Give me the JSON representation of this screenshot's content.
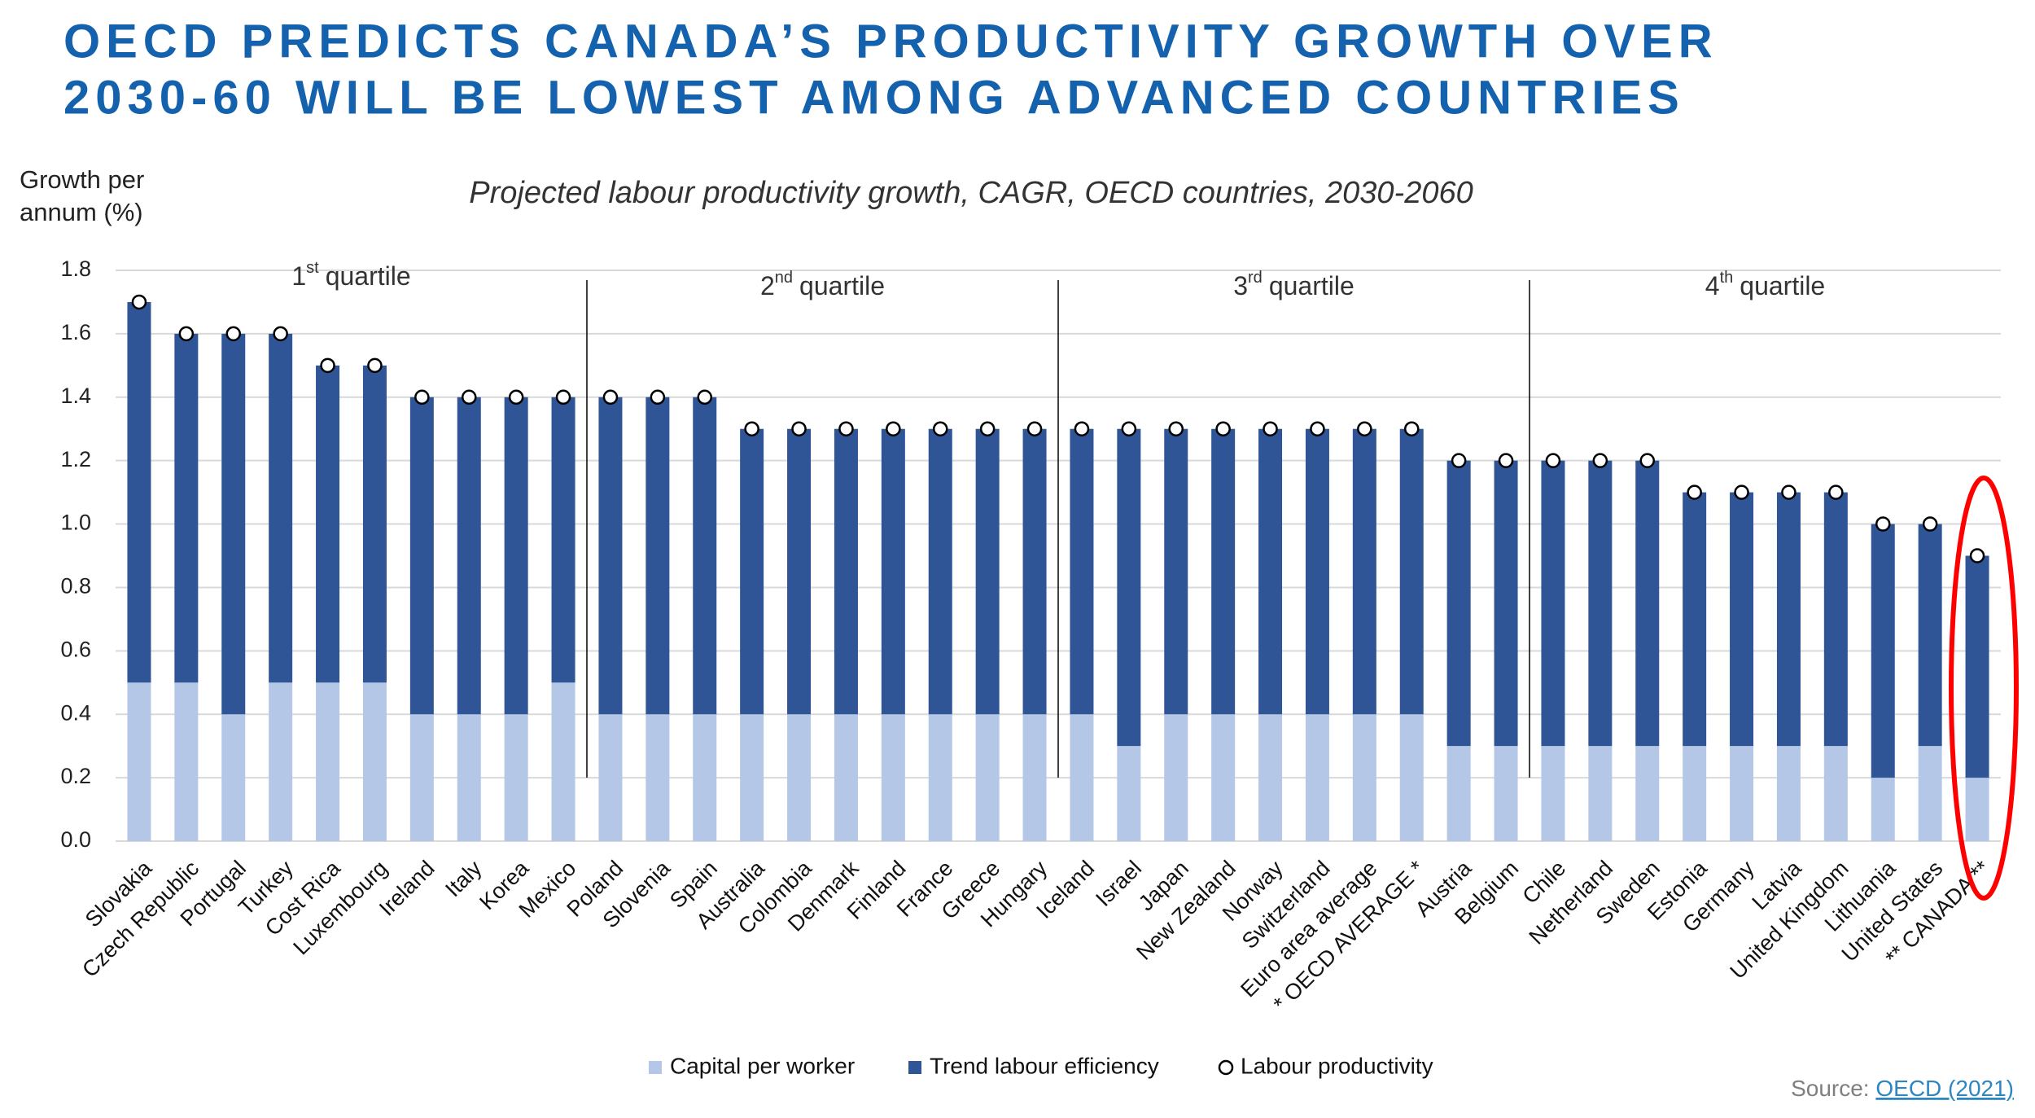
{
  "chart_data": {
    "type": "bar",
    "stacked": true,
    "title": [
      "OECD PREDICTS CANADA’S PRODUCTIVITY GROWTH OVER",
      "2030-60 WILL BE LOWEST AMONG ADVANCED COUNTRIES"
    ],
    "subtitle": "Projected labour productivity growth, CAGR, OECD countries, 2030-2060",
    "y_label": [
      "Growth per",
      "annum (%)"
    ],
    "annotations": [
      {
        "num": "1",
        "sup": "st",
        "rest": "quartile"
      },
      {
        "num": "2",
        "sup": "nd",
        "rest": "quartile"
      },
      {
        "num": "3",
        "sup": "rd",
        "rest": "quartile"
      },
      {
        "num": "4",
        "sup": "th",
        "rest": "quartile"
      }
    ],
    "categories": [
      "Slovakia",
      "Czech Republic",
      "Portugal",
      "Turkey",
      "Cost Rica",
      "Luxembourg",
      "Ireland",
      "Italy",
      "Korea",
      "Mexico",
      "Poland",
      "Slovenia",
      "Spain",
      "Australia",
      "Colombia",
      "Denmark",
      "Finland",
      "France",
      "Greece",
      "Hungary",
      "Iceland",
      "Israel",
      "Japan",
      "New Zealand",
      "Norway",
      "Switzerland",
      "Euro area average",
      "* OECD AVERAGE *",
      "Austria",
      "Belgium",
      "Chile",
      "Netherland",
      "Sweden",
      "Estonia",
      "Germany",
      "Latvia",
      "United Kingdom",
      "Lithuania",
      "United States",
      "** CANADA **"
    ],
    "series": [
      {
        "name": "Capital per worker",
        "type": "bar",
        "color": "#b4c7e7",
        "values": [
          0.5,
          0.5,
          0.4,
          0.5,
          0.5,
          0.5,
          0.4,
          0.4,
          0.4,
          0.5,
          0.4,
          0.4,
          0.4,
          0.4,
          0.4,
          0.4,
          0.4,
          0.4,
          0.4,
          0.4,
          0.4,
          0.3,
          0.4,
          0.4,
          0.4,
          0.4,
          0.4,
          0.4,
          0.3,
          0.3,
          0.3,
          0.3,
          0.3,
          0.3,
          0.3,
          0.3,
          0.3,
          0.2,
          0.3,
          0.2
        ]
      },
      {
        "name": "Trend labour efficiency",
        "type": "bar",
        "color": "#2f5597",
        "values": [
          1.2,
          1.1,
          1.2,
          1.1,
          1.0,
          1.0,
          1.0,
          1.0,
          1.0,
          0.9,
          1.0,
          1.0,
          1.0,
          0.9,
          0.9,
          0.9,
          0.9,
          0.9,
          0.9,
          0.9,
          0.9,
          1.0,
          0.9,
          0.9,
          0.9,
          0.9,
          0.9,
          0.9,
          0.9,
          0.9,
          0.9,
          0.9,
          0.9,
          0.8,
          0.8,
          0.8,
          0.8,
          0.8,
          0.7,
          0.7
        ]
      },
      {
        "name": "Labour productivity",
        "type": "scatter",
        "color": "#ffffff",
        "values": [
          1.7,
          1.6,
          1.6,
          1.6,
          1.5,
          1.5,
          1.4,
          1.4,
          1.4,
          1.4,
          1.4,
          1.4,
          1.4,
          1.3,
          1.3,
          1.3,
          1.3,
          1.3,
          1.3,
          1.3,
          1.3,
          1.3,
          1.3,
          1.3,
          1.3,
          1.3,
          1.3,
          1.3,
          1.2,
          1.2,
          1.2,
          1.2,
          1.2,
          1.1,
          1.1,
          1.1,
          1.1,
          1.0,
          1.0,
          0.9
        ]
      }
    ],
    "ylim": [
      0,
      1.8
    ],
    "yticks": [
      {
        "value": 0,
        "label": "0.0"
      },
      0.2,
      0.4,
      0.6,
      0.8,
      {
        "value": 1,
        "label": "1.0"
      },
      1.2,
      1.4,
      1.6,
      1.8
    ],
    "grid": true,
    "legend": "bottom",
    "source": {
      "prefix": "Source:",
      "link": "OECD (2021)"
    }
  }
}
